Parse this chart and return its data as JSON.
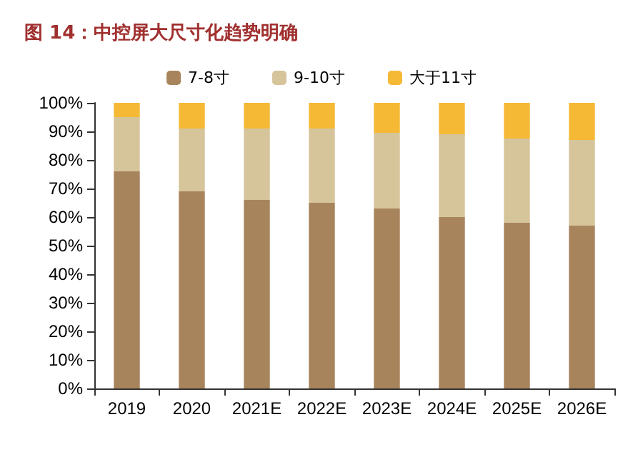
{
  "chart_data": {
    "type": "bar",
    "stacked": true,
    "title": "图 14：中控屏大尺寸化趋势明确",
    "categories": [
      "2019",
      "2020",
      "2021E",
      "2022E",
      "2023E",
      "2024E",
      "2025E",
      "2026E"
    ],
    "series": [
      {
        "name": "7-8寸",
        "color": "#a8845c",
        "values": [
          76,
          69,
          66,
          65,
          63,
          60,
          58,
          57
        ]
      },
      {
        "name": "9-10寸",
        "color": "#d6c49b",
        "values": [
          19,
          22,
          25,
          26,
          26.5,
          29,
          29.5,
          30
        ]
      },
      {
        "name": "大于11寸",
        "color": "#f5b935",
        "values": [
          5,
          9,
          9,
          9,
          10.5,
          11,
          12.5,
          13
        ]
      }
    ],
    "ylim": [
      0,
      100
    ],
    "yticks": [
      {
        "value": 0,
        "label": "0%"
      },
      {
        "value": 10,
        "label": "10%"
      },
      {
        "value": 20,
        "label": "20%"
      },
      {
        "value": 30,
        "label": "30%"
      },
      {
        "value": 40,
        "label": "40%"
      },
      {
        "value": 50,
        "label": "50%"
      },
      {
        "value": 60,
        "label": "60%"
      },
      {
        "value": 70,
        "label": "70%"
      },
      {
        "value": 80,
        "label": "80%"
      },
      {
        "value": 90,
        "label": "90%"
      },
      {
        "value": 100,
        "label": "100%"
      }
    ],
    "grid": false,
    "legend": "top"
  }
}
